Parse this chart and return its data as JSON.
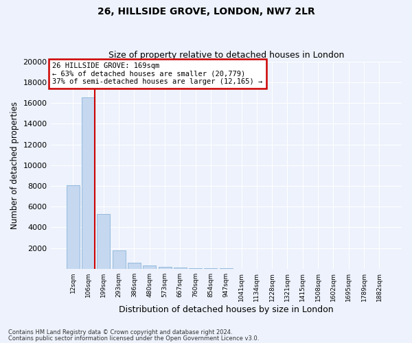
{
  "title1": "26, HILLSIDE GROVE, LONDON, NW7 2LR",
  "title2": "Size of property relative to detached houses in London",
  "xlabel": "Distribution of detached houses by size in London",
  "ylabel": "Number of detached properties",
  "bar_labels": [
    "12sqm",
    "106sqm",
    "199sqm",
    "293sqm",
    "386sqm",
    "480sqm",
    "573sqm",
    "667sqm",
    "760sqm",
    "854sqm",
    "947sqm",
    "1041sqm",
    "1134sqm",
    "1228sqm",
    "1321sqm",
    "1415sqm",
    "1508sqm",
    "1602sqm",
    "1695sqm",
    "1789sqm",
    "1882sqm"
  ],
  "bar_values": [
    8050,
    16500,
    5300,
    1800,
    580,
    310,
    190,
    120,
    80,
    55,
    40,
    28,
    20,
    15,
    12,
    9,
    7,
    5,
    4,
    3,
    2
  ],
  "bar_color": "#c5d8f0",
  "bar_edge_color": "#8ab4d8",
  "vline_x_bar_index": 1,
  "annotation_title": "26 HILLSIDE GROVE: 169sqm",
  "annotation_line1": "← 63% of detached houses are smaller (20,779)",
  "annotation_line2": "37% of semi-detached houses are larger (12,165) →",
  "annotation_box_facecolor": "#ffffff",
  "annotation_box_edgecolor": "#cc0000",
  "vline_color": "#cc0000",
  "ylim": [
    0,
    20000
  ],
  "yticks": [
    0,
    2000,
    4000,
    6000,
    8000,
    10000,
    12000,
    14000,
    16000,
    18000,
    20000
  ],
  "footer1": "Contains HM Land Registry data © Crown copyright and database right 2024.",
  "footer2": "Contains public sector information licensed under the Open Government Licence v3.0.",
  "background_color": "#edf2fc",
  "grid_color": "#ffffff"
}
